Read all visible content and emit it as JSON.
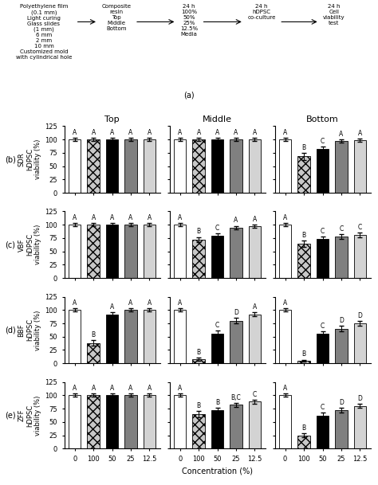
{
  "chart_data": [
    {
      "type": "diagram",
      "title": "(a)",
      "annotations": [
        [
          "Polyethylene film",
          "(0.1 mm)",
          "Light curing",
          "Glass slides",
          "(1 mm)",
          "6 mm",
          "2 mm",
          "10 mm",
          "Customized mold",
          "with cylindrical hole"
        ],
        [
          "Composite\nresin",
          "Top",
          "Middle",
          "Bottom"
        ],
        [
          "24 h",
          "100%",
          "50%",
          "25%",
          "12.5%",
          "Media"
        ],
        [
          "24 h",
          "hDPSC\nco-culture"
        ],
        [
          "24 h",
          "Cell\nviability\ntest"
        ]
      ]
    },
    {
      "type": "bar",
      "title": "Top",
      "ylabel": "SDR\nhDPSC\nviability (%)",
      "subtitle": "(b)",
      "tick_labels": "y",
      "categories": [
        "0",
        "100",
        "50",
        "25",
        "12.5"
      ],
      "values": [
        100,
        100,
        100,
        100,
        100
      ],
      "errors": [
        3,
        3,
        3,
        3,
        3
      ],
      "annotations": [
        "A",
        "A",
        "A",
        "A",
        "A"
      ],
      "colors": [
        "white",
        "#c8c8c8",
        "black",
        "#808080",
        "#d3d3d3"
      ],
      "ylim": [
        0,
        125
      ],
      "yticks": [
        0,
        25,
        50,
        75,
        100,
        125
      ]
    },
    {
      "type": "bar",
      "title": "Middle",
      "tick_labels": false,
      "categories": [
        "0",
        "100",
        "50",
        "25",
        "12.5"
      ],
      "values": [
        100,
        100,
        100,
        100,
        100
      ],
      "errors": [
        3,
        3,
        3,
        3,
        3
      ],
      "annotations": [
        "A",
        "A",
        "A",
        "A",
        "A"
      ],
      "colors": [
        "white",
        "#c8c8c8",
        "black",
        "#808080",
        "#d3d3d3"
      ],
      "ylim": [
        0,
        125
      ],
      "yticks": [
        0,
        25,
        50,
        75,
        100,
        125
      ]
    },
    {
      "type": "bar",
      "title": "Bottom",
      "tick_labels": false,
      "categories": [
        "0",
        "100",
        "50",
        "25",
        "12.5"
      ],
      "values": [
        100,
        68,
        82,
        97,
        98
      ],
      "errors": [
        3,
        6,
        4,
        3,
        3
      ],
      "annotations": [
        "A",
        "B",
        "C",
        "A",
        "A"
      ],
      "colors": [
        "white",
        "#c8c8c8",
        "black",
        "#808080",
        "#d3d3d3"
      ],
      "ylim": [
        0,
        125
      ],
      "yticks": [
        0,
        25,
        50,
        75,
        100,
        125
      ]
    },
    {
      "type": "bar",
      "ylabel": "VBF\nhDPSC\nviability (%)",
      "subtitle": "(c)",
      "tick_labels": "y",
      "categories": [
        "0",
        "100",
        "50",
        "25",
        "12.5"
      ],
      "values": [
        100,
        100,
        100,
        100,
        100
      ],
      "errors": [
        3,
        3,
        3,
        3,
        3
      ],
      "annotations": [
        "A",
        "A",
        "A",
        "A",
        "A"
      ],
      "colors": [
        "white",
        "#c8c8c8",
        "black",
        "#808080",
        "#d3d3d3"
      ],
      "ylim": [
        0,
        125
      ],
      "yticks": [
        0,
        25,
        50,
        75,
        100,
        125
      ]
    },
    {
      "type": "bar",
      "tick_labels": false,
      "categories": [
        "0",
        "100",
        "50",
        "25",
        "12.5"
      ],
      "values": [
        100,
        72,
        80,
        95,
        97
      ],
      "errors": [
        3,
        5,
        4,
        3,
        3
      ],
      "annotations": [
        "A",
        "B",
        "C",
        "A",
        "A"
      ],
      "colors": [
        "white",
        "#c8c8c8",
        "black",
        "#808080",
        "#d3d3d3"
      ],
      "ylim": [
        0,
        125
      ],
      "yticks": [
        0,
        25,
        50,
        75,
        100,
        125
      ]
    },
    {
      "type": "bar",
      "tick_labels": false,
      "categories": [
        "0",
        "100",
        "50",
        "25",
        "12.5"
      ],
      "values": [
        100,
        64,
        73,
        78,
        81
      ],
      "errors": [
        3,
        6,
        5,
        4,
        4
      ],
      "annotations": [
        "A",
        "B",
        "C",
        "C",
        "C"
      ],
      "colors": [
        "white",
        "#c8c8c8",
        "black",
        "#808080",
        "#d3d3d3"
      ],
      "ylim": [
        0,
        125
      ],
      "yticks": [
        0,
        25,
        50,
        75,
        100,
        125
      ]
    },
    {
      "type": "bar",
      "ylabel": "BBF\nhDPSC\nviability (%)",
      "subtitle": "(d)",
      "tick_labels": "y",
      "categories": [
        "0",
        "100",
        "50",
        "25",
        "12.5"
      ],
      "values": [
        100,
        38,
        92,
        100,
        100
      ],
      "errors": [
        3,
        5,
        4,
        3,
        3
      ],
      "annotations": [
        "A",
        "B",
        "A",
        "A",
        "A"
      ],
      "colors": [
        "white",
        "#c8c8c8",
        "black",
        "#808080",
        "#d3d3d3"
      ],
      "ylim": [
        0,
        125
      ],
      "yticks": [
        0,
        25,
        50,
        75,
        100,
        125
      ]
    },
    {
      "type": "bar",
      "tick_labels": false,
      "categories": [
        "0",
        "100",
        "50",
        "25",
        "12.5"
      ],
      "values": [
        100,
        8,
        55,
        80,
        92
      ],
      "errors": [
        3,
        3,
        6,
        5,
        4
      ],
      "annotations": [
        "A",
        "B",
        "C",
        "D",
        "A"
      ],
      "colors": [
        "white",
        "#c8c8c8",
        "black",
        "#808080",
        "#d3d3d3"
      ],
      "ylim": [
        0,
        125
      ],
      "yticks": [
        0,
        25,
        50,
        75,
        100,
        125
      ]
    },
    {
      "type": "bar",
      "tick_labels": false,
      "categories": [
        "0",
        "100",
        "50",
        "25",
        "12.5"
      ],
      "values": [
        100,
        5,
        55,
        65,
        75
      ],
      "errors": [
        3,
        2,
        5,
        5,
        4
      ],
      "annotations": [
        "A",
        "B",
        "C",
        "D",
        "D"
      ],
      "colors": [
        "white",
        "#c8c8c8",
        "black",
        "#808080",
        "#d3d3d3"
      ],
      "ylim": [
        0,
        125
      ],
      "yticks": [
        0,
        25,
        50,
        75,
        100,
        125
      ]
    },
    {
      "type": "bar",
      "ylabel": "ZFF\nhDPSC\nviability (%)",
      "subtitle": "(e)",
      "categories": [
        "0",
        "100",
        "50",
        "25",
        "12.5"
      ],
      "values": [
        100,
        100,
        100,
        100,
        100
      ],
      "errors": [
        3,
        3,
        3,
        3,
        3
      ],
      "annotations": [
        "A",
        "A",
        "A",
        "A",
        "A"
      ],
      "colors": [
        "white",
        "#c8c8c8",
        "black",
        "#808080",
        "#d3d3d3"
      ],
      "ylim": [
        0,
        125
      ],
      "yticks": [
        0,
        25,
        50,
        75,
        100,
        125
      ]
    },
    {
      "type": "bar",
      "xlabel": "Concentration (%)",
      "tick_labels": "x",
      "categories": [
        "0",
        "100",
        "50",
        "25",
        "12.5"
      ],
      "values": [
        100,
        65,
        72,
        82,
        88
      ],
      "errors": [
        3,
        6,
        5,
        4,
        4
      ],
      "annotations": [
        "A",
        "B",
        "B",
        "B,C",
        "C"
      ],
      "colors": [
        "white",
        "#c8c8c8",
        "black",
        "#808080",
        "#d3d3d3"
      ],
      "ylim": [
        0,
        125
      ],
      "yticks": [
        0,
        25,
        50,
        75,
        100,
        125
      ]
    },
    {
      "type": "bar",
      "tick_labels": "x",
      "categories": [
        "0",
        "100",
        "50",
        "25",
        "12.5"
      ],
      "values": [
        100,
        25,
        62,
        72,
        80
      ],
      "errors": [
        3,
        4,
        5,
        5,
        4
      ],
      "annotations": [
        "A",
        "B",
        "C",
        "D",
        "D"
      ],
      "colors": [
        "white",
        "#c8c8c8",
        "black",
        "#808080",
        "#d3d3d3"
      ],
      "ylim": [
        0,
        125
      ],
      "yticks": [
        0,
        25,
        50,
        75,
        100,
        125
      ]
    }
  ]
}
